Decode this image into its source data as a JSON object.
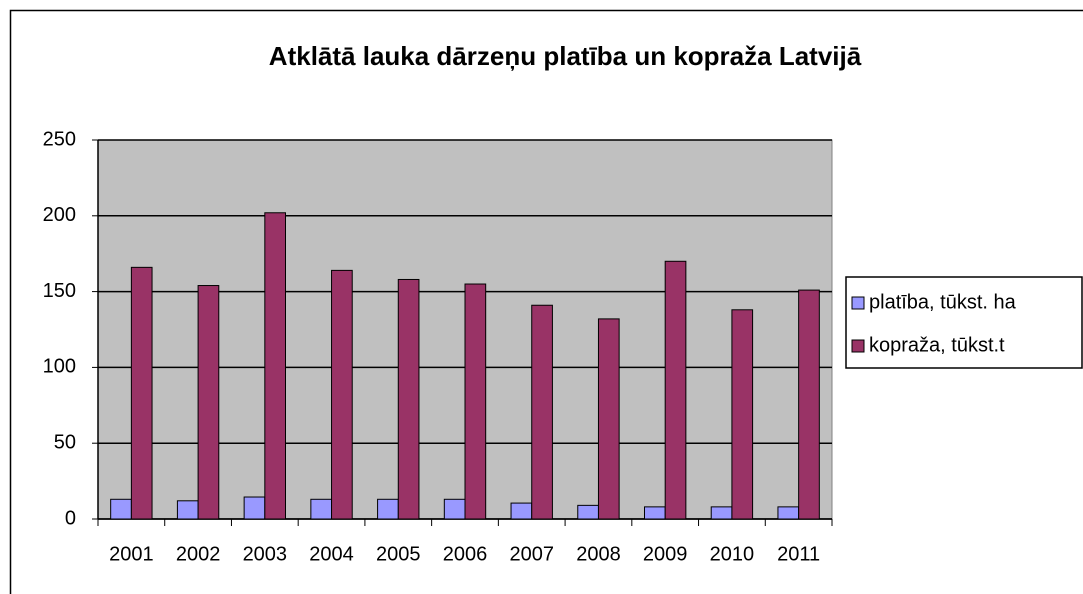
{
  "chart_data": {
    "type": "bar",
    "title": "Atklātā lauka dārzeņu platība un kopraža Latvijā",
    "categories": [
      "2001",
      "2002",
      "2003",
      "2004",
      "2005",
      "2006",
      "2007",
      "2008",
      "2009",
      "2010",
      "2011"
    ],
    "series": [
      {
        "name": "platība, tūkst. ha",
        "color": "#9999ff",
        "values": [
          13,
          12,
          14.5,
          13,
          13,
          13,
          10.5,
          9,
          8,
          8,
          8
        ]
      },
      {
        "name": "kopraža, tūkst.t",
        "color": "#993366",
        "values": [
          166,
          154,
          202,
          164,
          158,
          155,
          141,
          132,
          170,
          138,
          151
        ]
      }
    ],
    "ylim": [
      0,
      250
    ],
    "yticks": [
      0,
      50,
      100,
      150,
      200,
      250
    ],
    "grid": true,
    "legend": "right"
  }
}
